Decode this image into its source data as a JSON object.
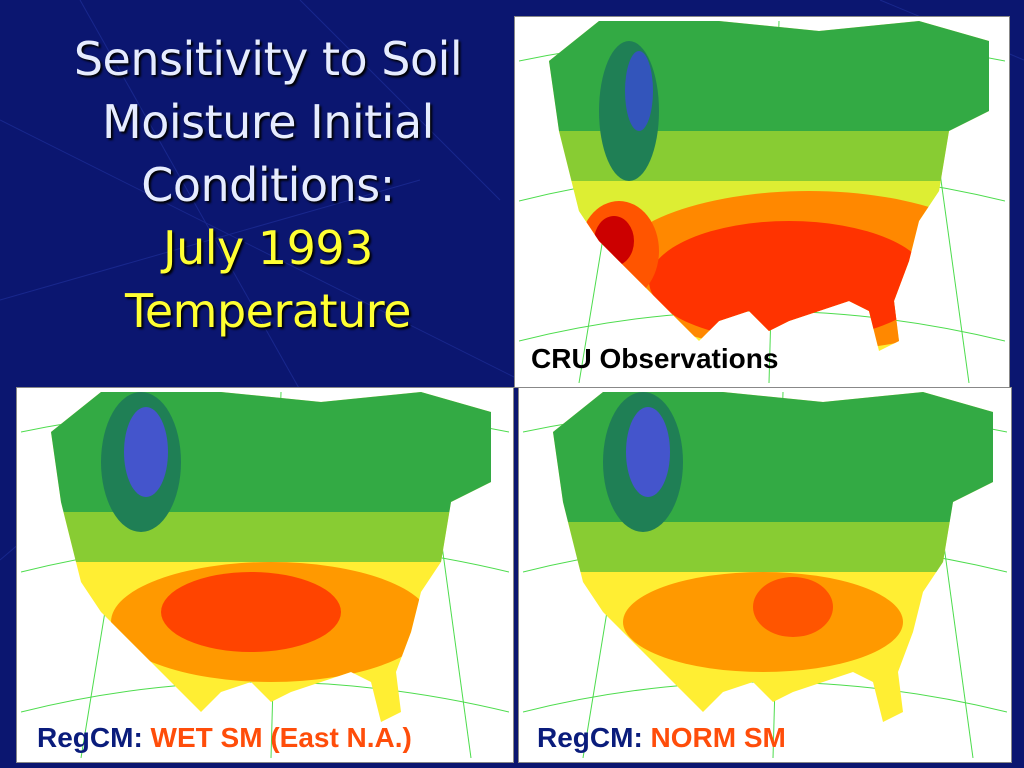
{
  "slide": {
    "title_lines": [
      "Sensitivity to Soil",
      "Moisture Initial",
      "Conditions:"
    ],
    "subtitle_lines": [
      "July 1993",
      "Temperature"
    ]
  },
  "panels": {
    "cru": {
      "label": "CRU Observations"
    },
    "wet": {
      "label_prefix": "RegCM:",
      "label_emphasis": "WET SM (East N.A.)"
    },
    "norm": {
      "label_prefix": "RegCM:",
      "label_emphasis": "NORM SM"
    }
  },
  "colors": {
    "background": "#0b1670",
    "title": "#e6ecff",
    "subtitle": "#ffff33",
    "label_prefix": "#0a1c7c",
    "label_emphasis": "#ff4d0a"
  }
}
